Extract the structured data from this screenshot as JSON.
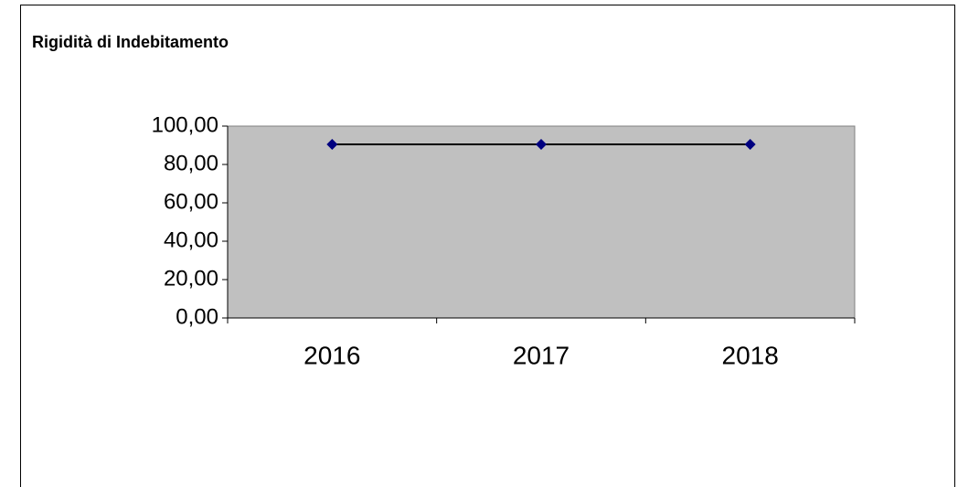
{
  "chart_data": {
    "type": "line",
    "title": "Rigidità di Indebitamento",
    "categories": [
      "2016",
      "2017",
      "2018"
    ],
    "series": [
      {
        "name": "Rigidità di Indebitamento",
        "color": "#000080",
        "values": [
          90.5,
          90.5,
          90.5
        ]
      }
    ],
    "ylim": [
      0,
      100
    ],
    "yticks": [
      {
        "value": 0,
        "label": "0,00"
      },
      {
        "value": 20,
        "label": "20,00"
      },
      {
        "value": 40,
        "label": "40,00"
      },
      {
        "value": 60,
        "label": "60,00"
      },
      {
        "value": 80,
        "label": "80,00"
      },
      {
        "value": 100,
        "label": "100,00"
      }
    ],
    "grid": false
  }
}
